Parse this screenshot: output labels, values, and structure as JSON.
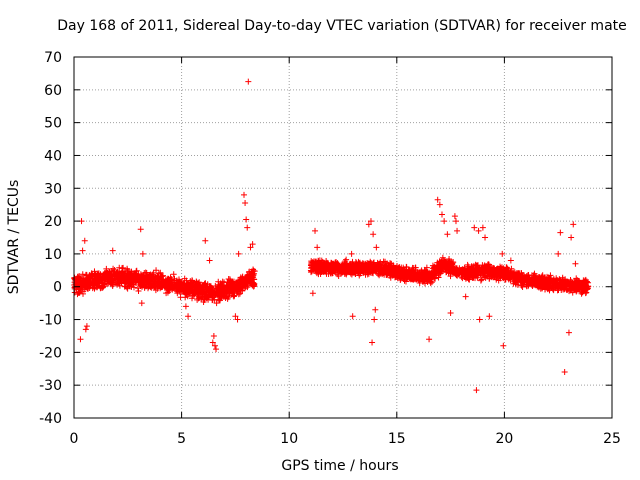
{
  "chart_data": {
    "type": "scatter",
    "title": "Day 168 of 2011, Sidereal Day-to-day VTEC variation (SDTVAR) for receiver mate",
    "xlabel": "GPS time / hours",
    "ylabel": "SDTVAR / TECUs",
    "xlim": [
      0,
      25
    ],
    "ylim": [
      -40,
      70
    ],
    "xticks": [
      0,
      5,
      10,
      15,
      20,
      25
    ],
    "yticks": [
      -40,
      -30,
      -20,
      -10,
      0,
      10,
      20,
      30,
      40,
      50,
      60,
      70
    ],
    "grid": true,
    "marker": "+",
    "color": "#ff0000",
    "segments": [
      {
        "x0": 0.0,
        "x1": 8.4,
        "baseline": 0.5,
        "spread": 2.5,
        "trend": [
          [
            0,
            0.5
          ],
          [
            1.8,
            3
          ],
          [
            3.5,
            2
          ],
          [
            5.0,
            0
          ],
          [
            6.5,
            -2
          ],
          [
            7.5,
            0
          ],
          [
            8.4,
            3
          ]
        ]
      },
      {
        "x0": 11.0,
        "x1": 23.9,
        "baseline": 5,
        "spread": 2.0,
        "trend": [
          [
            11,
            6
          ],
          [
            13,
            5.5
          ],
          [
            14,
            6
          ],
          [
            15,
            4.5
          ],
          [
            16.5,
            3
          ],
          [
            17.2,
            7
          ],
          [
            18,
            4
          ],
          [
            19,
            5
          ],
          [
            20,
            4
          ],
          [
            21,
            2
          ],
          [
            22,
            1
          ],
          [
            23,
            0.5
          ],
          [
            23.9,
            0
          ]
        ]
      }
    ],
    "outliers": [
      {
        "x": 8.1,
        "y": 62.5
      },
      {
        "x": 7.9,
        "y": 28
      },
      {
        "x": 7.95,
        "y": 25.5
      },
      {
        "x": 8.0,
        "y": 20.5
      },
      {
        "x": 8.05,
        "y": 18
      },
      {
        "x": 0.35,
        "y": 20
      },
      {
        "x": 0.5,
        "y": 14
      },
      {
        "x": 0.4,
        "y": 11
      },
      {
        "x": 0.3,
        "y": -16
      },
      {
        "x": 0.55,
        "y": -13
      },
      {
        "x": 0.6,
        "y": -12
      },
      {
        "x": 1.8,
        "y": 11
      },
      {
        "x": 3.1,
        "y": 17.5
      },
      {
        "x": 3.2,
        "y": 10
      },
      {
        "x": 3.15,
        "y": -5
      },
      {
        "x": 5.2,
        "y": -6
      },
      {
        "x": 5.3,
        "y": -9
      },
      {
        "x": 6.1,
        "y": 14
      },
      {
        "x": 6.3,
        "y": 8
      },
      {
        "x": 6.5,
        "y": -15
      },
      {
        "x": 6.55,
        "y": -18
      },
      {
        "x": 6.6,
        "y": -19
      },
      {
        "x": 6.45,
        "y": -17
      },
      {
        "x": 7.5,
        "y": -9
      },
      {
        "x": 7.6,
        "y": -10
      },
      {
        "x": 7.65,
        "y": 10
      },
      {
        "x": 8.2,
        "y": 12
      },
      {
        "x": 8.3,
        "y": 13
      },
      {
        "x": 11.2,
        "y": 17
      },
      {
        "x": 11.1,
        "y": -2
      },
      {
        "x": 11.3,
        "y": 12
      },
      {
        "x": 12.9,
        "y": 10
      },
      {
        "x": 12.95,
        "y": -9
      },
      {
        "x": 13.7,
        "y": 19
      },
      {
        "x": 13.8,
        "y": 20
      },
      {
        "x": 13.9,
        "y": 16
      },
      {
        "x": 13.85,
        "y": -17
      },
      {
        "x": 13.95,
        "y": -10
      },
      {
        "x": 14.0,
        "y": -7
      },
      {
        "x": 14.05,
        "y": 12
      },
      {
        "x": 16.5,
        "y": -16
      },
      {
        "x": 16.9,
        "y": 26.5
      },
      {
        "x": 17.0,
        "y": 25
      },
      {
        "x": 17.1,
        "y": 22
      },
      {
        "x": 17.2,
        "y": 20
      },
      {
        "x": 17.35,
        "y": 16
      },
      {
        "x": 17.5,
        "y": -8
      },
      {
        "x": 17.7,
        "y": 21.5
      },
      {
        "x": 17.75,
        "y": 20
      },
      {
        "x": 17.8,
        "y": 17
      },
      {
        "x": 18.2,
        "y": -3
      },
      {
        "x": 18.6,
        "y": 18
      },
      {
        "x": 18.7,
        "y": -31.5
      },
      {
        "x": 18.8,
        "y": 17
      },
      {
        "x": 19.0,
        "y": 18
      },
      {
        "x": 19.1,
        "y": 15
      },
      {
        "x": 18.85,
        "y": -10
      },
      {
        "x": 19.3,
        "y": -9
      },
      {
        "x": 19.9,
        "y": 10
      },
      {
        "x": 19.95,
        "y": -18
      },
      {
        "x": 20.3,
        "y": 8
      },
      {
        "x": 22.6,
        "y": 16.5
      },
      {
        "x": 22.8,
        "y": -26
      },
      {
        "x": 23.2,
        "y": 19
      },
      {
        "x": 23.1,
        "y": 15
      },
      {
        "x": 23.0,
        "y": -14
      },
      {
        "x": 23.3,
        "y": 7
      },
      {
        "x": 22.5,
        "y": 10
      }
    ]
  }
}
